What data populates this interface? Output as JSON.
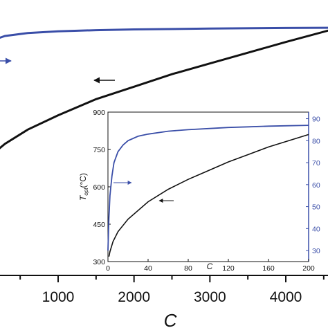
{
  "colors": {
    "black_series": "#111111",
    "blue_series": "#3a4ea8",
    "axis": "#111111"
  },
  "chart_data": [
    {
      "type": "line",
      "panel": "main",
      "xlabel": "C",
      "x_ticks": [
        "1000",
        "2000",
        "3000",
        "4000"
      ],
      "xlim": [
        0,
        4700
      ],
      "series": [
        {
          "color": "#111111",
          "axis": "left",
          "points": [
            [
              100,
              0.18
            ],
            [
              300,
              0.25
            ],
            [
              600,
              0.33
            ],
            [
              1000,
              0.41
            ],
            [
              1500,
              0.5
            ],
            [
              2000,
              0.57
            ],
            [
              2500,
              0.64
            ],
            [
              3000,
              0.7
            ],
            [
              3500,
              0.76
            ],
            [
              4000,
              0.82
            ],
            [
              4700,
              0.9
            ]
          ]
        },
        {
          "color": "#3a4ea8",
          "axis": "right",
          "points": [
            [
              0,
              0.84
            ],
            [
              100,
              0.9
            ],
            [
              300,
              0.935
            ],
            [
              600,
              0.955
            ],
            [
              1000,
              0.967
            ],
            [
              1500,
              0.975
            ],
            [
              2000,
              0.98
            ],
            [
              3000,
              0.986
            ],
            [
              4000,
              0.99
            ],
            [
              4700,
              0.992
            ]
          ]
        }
      ],
      "annotations": [
        "arrow-left-black",
        "arrow-right-blue"
      ]
    },
    {
      "type": "line",
      "panel": "inset",
      "xlabel": "C",
      "ylabel": "T",
      "ylabel_sub": "opt",
      "ylabel_unit": "(°C)",
      "xlim": [
        0,
        200
      ],
      "ylim_left": [
        300,
        900
      ],
      "ylim_right": [
        25,
        93
      ],
      "x_ticks": [
        0,
        40,
        80,
        120,
        160,
        200
      ],
      "y_ticks_left": [
        300,
        450,
        600,
        750,
        900
      ],
      "y_ticks_right": [
        30,
        40,
        50,
        60,
        70,
        80,
        90
      ],
      "series": [
        {
          "color": "#111111",
          "axis": "left",
          "points": [
            [
              1,
              320
            ],
            [
              2,
              340
            ],
            [
              5,
              380
            ],
            [
              10,
              420
            ],
            [
              20,
              470
            ],
            [
              40,
              540
            ],
            [
              60,
              590
            ],
            [
              80,
              630
            ],
            [
              100,
              665
            ],
            [
              120,
              700
            ],
            [
              140,
              730
            ],
            [
              160,
              760
            ],
            [
              180,
              785
            ],
            [
              200,
              810
            ]
          ]
        },
        {
          "color": "#3a4ea8",
          "axis": "right",
          "points": [
            [
              0,
              30
            ],
            [
              1,
              45
            ],
            [
              2,
              55
            ],
            [
              4,
              64
            ],
            [
              6,
              70
            ],
            [
              10,
              75
            ],
            [
              15,
              78
            ],
            [
              20,
              80
            ],
            [
              30,
              82
            ],
            [
              40,
              83
            ],
            [
              60,
              84.3
            ],
            [
              80,
              85
            ],
            [
              100,
              85.5
            ],
            [
              120,
              86
            ],
            [
              140,
              86.3
            ],
            [
              160,
              86.6
            ],
            [
              180,
              86.8
            ],
            [
              200,
              87
            ]
          ]
        }
      ],
      "annotations": [
        "arrow-left-black",
        "arrow-right-blue"
      ]
    }
  ]
}
